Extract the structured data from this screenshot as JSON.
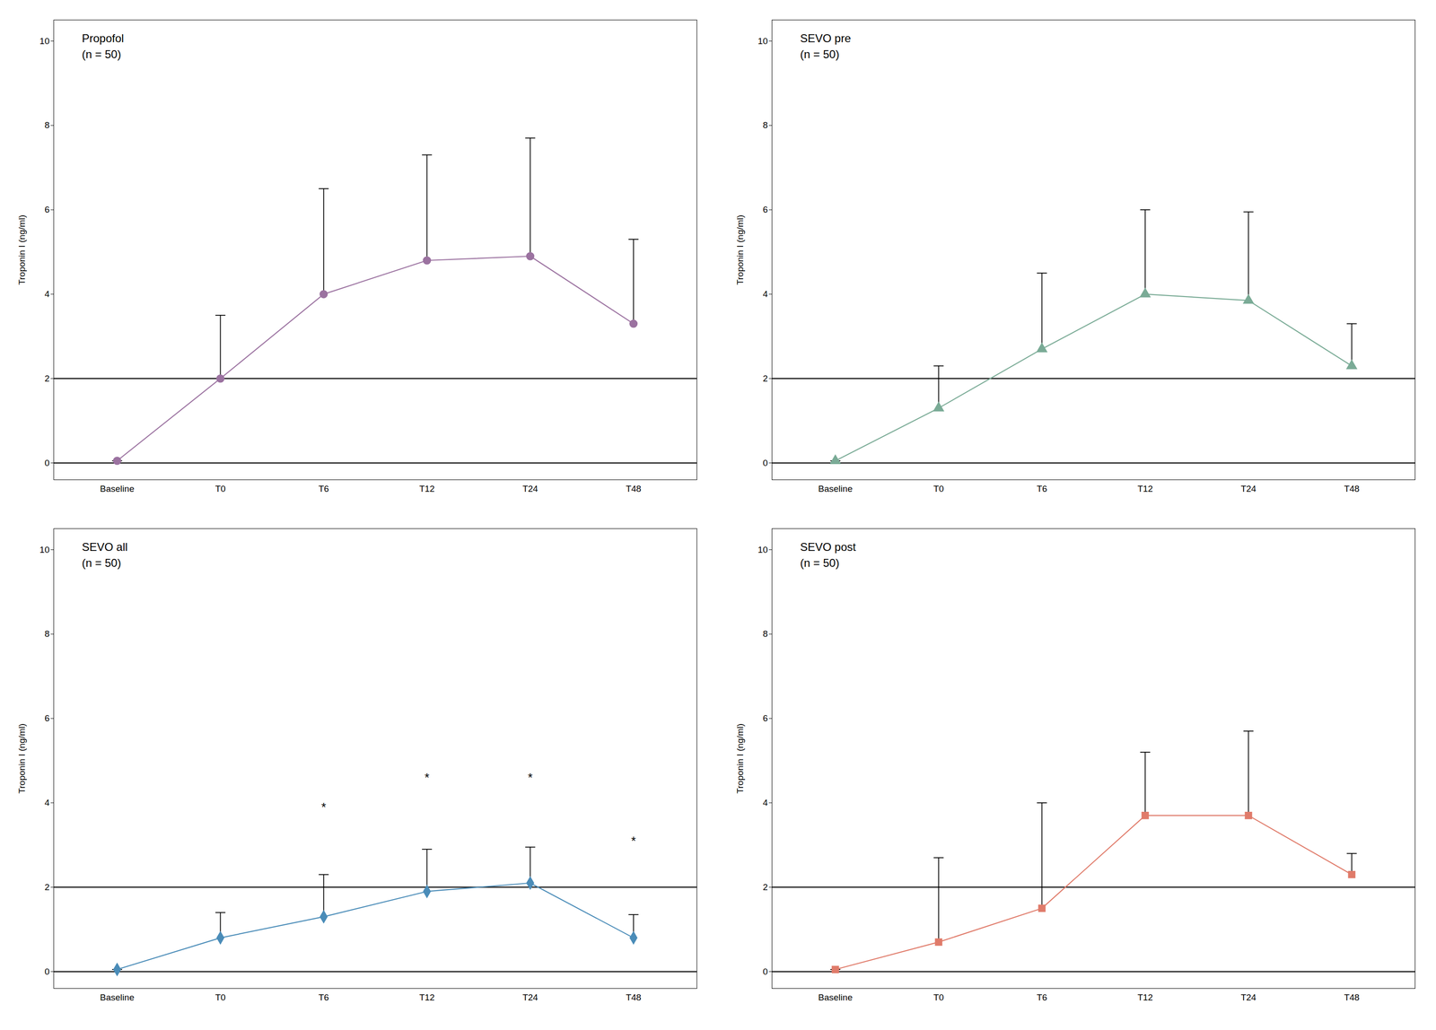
{
  "chart_data": [
    {
      "type": "line",
      "title": "Propofol\n(n = 50)",
      "categories": [
        "Baseline",
        "T0",
        "T6",
        "T12",
        "T24",
        "T48"
      ],
      "values": [
        0.05,
        2.0,
        4.0,
        4.8,
        4.9,
        3.3
      ],
      "errors": [
        0.0,
        1.5,
        2.5,
        2.5,
        2.8,
        2.0
      ],
      "color": "#9b72a0",
      "marker": "circle",
      "reference_lines": [
        2.0,
        0
      ],
      "ylabel": "Troponin I (ng/ml)",
      "ylim": [
        -0.4,
        10.5
      ],
      "yticks": [
        0,
        2,
        4,
        6,
        8,
        10
      ],
      "grid": false
    },
    {
      "type": "line",
      "title": "SEVO pre\n(n = 50)",
      "categories": [
        "Baseline",
        "T0",
        "T6",
        "T12",
        "T24",
        "T48"
      ],
      "values": [
        0.05,
        1.3,
        2.7,
        4.0,
        3.85,
        2.3
      ],
      "errors": [
        0.0,
        1.0,
        1.8,
        2.0,
        2.1,
        1.0
      ],
      "color": "#7aab96",
      "marker": "triangle",
      "reference_lines": [
        2.0,
        0
      ],
      "ylabel": "Troponin I (ng/ml)",
      "ylim": [
        -0.4,
        10.5
      ],
      "yticks": [
        0,
        2,
        4,
        6,
        8,
        10
      ],
      "grid": false
    },
    {
      "type": "line",
      "title": "SEVO all\n(n = 50)",
      "categories": [
        "Baseline",
        "T0",
        "T6",
        "T12",
        "T24",
        "T48"
      ],
      "values": [
        0.05,
        0.8,
        1.3,
        1.9,
        2.1,
        0.8
      ],
      "errors": [
        0.0,
        0.6,
        1.0,
        1.0,
        0.85,
        0.55
      ],
      "color": "#4a8cb8",
      "marker": "diamond",
      "reference_lines": [
        2.0,
        0
      ],
      "annotations": [
        {
          "x": "T6",
          "y": 3.8,
          "text": "*"
        },
        {
          "x": "T12",
          "y": 4.5,
          "text": "*"
        },
        {
          "x": "T24",
          "y": 4.5,
          "text": "*"
        },
        {
          "x": "T48",
          "y": 3.0,
          "text": "*"
        }
      ],
      "ylabel": "Troponin I (ng/ml)",
      "ylim": [
        -0.4,
        10.5
      ],
      "yticks": [
        0,
        2,
        4,
        6,
        8,
        10
      ],
      "grid": false
    },
    {
      "type": "line",
      "title": "SEVO post\n(n = 50)",
      "categories": [
        "Baseline",
        "T0",
        "T6",
        "T12",
        "T24",
        "T48"
      ],
      "values": [
        0.05,
        0.7,
        1.5,
        3.7,
        3.7,
        2.3
      ],
      "errors": [
        0.0,
        2.0,
        2.5,
        1.5,
        2.0,
        0.5
      ],
      "color": "#e07b6a",
      "marker": "square",
      "reference_lines": [
        2.0,
        0
      ],
      "ylabel": "Troponin I (ng/ml)",
      "ylim": [
        -0.4,
        10.5
      ],
      "yticks": [
        0,
        2,
        4,
        6,
        8,
        10
      ],
      "grid": false
    }
  ]
}
